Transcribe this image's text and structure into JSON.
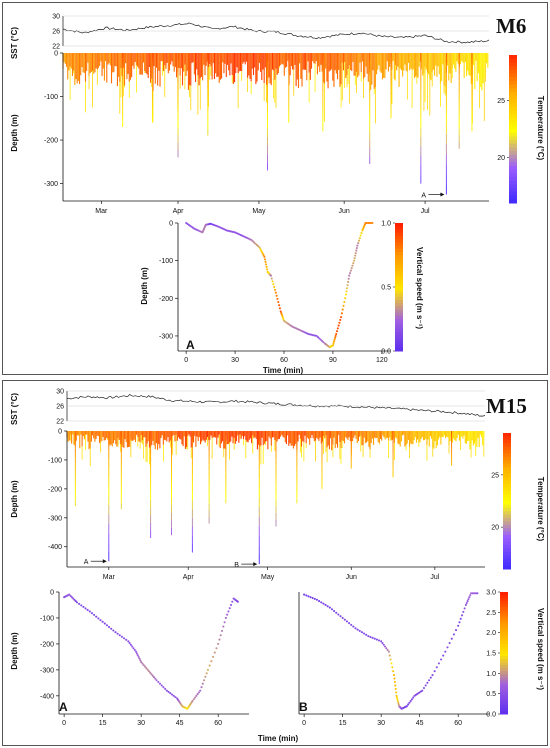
{
  "colors": {
    "temperature_scale": [
      "#3a28ff",
      "#9b5dff",
      "#ffff00",
      "#ffb000",
      "#ff2a00"
    ],
    "speed_scale": [
      "#5a2cf0",
      "#a060e0",
      "#ffe600",
      "#ff9a00",
      "#ff2000"
    ],
    "sst_line": "#222222",
    "axis": "#111111"
  },
  "chart_data": [
    {
      "id": "m6",
      "label": "M6",
      "type": "line",
      "sst": {
        "ylabel": "SST (°C)",
        "ylim": [
          22,
          30
        ],
        "ytick_labels": [
          "30",
          "26",
          "22"
        ],
        "ytick_values": [
          30,
          26,
          22
        ],
        "x": [
          0,
          0.05,
          0.1,
          0.15,
          0.2,
          0.25,
          0.3,
          0.35,
          0.4,
          0.45,
          0.5,
          0.55,
          0.6,
          0.65,
          0.7,
          0.75,
          0.8,
          0.85,
          0.9,
          0.95,
          1.0
        ],
        "values": [
          26.5,
          25.5,
          26.8,
          26.2,
          27.0,
          27.5,
          28.0,
          26.5,
          27.2,
          26.0,
          25.8,
          24.8,
          24.2,
          25.0,
          25.5,
          24.5,
          24.2,
          24.8,
          23.2,
          23.0,
          23.4
        ]
      },
      "dive": {
        "ylabel": "Depth (m)",
        "ylim": [
          0,
          340
        ],
        "ytick_labels": [
          "0",
          "-100",
          "-200",
          "-300"
        ],
        "ytick_values": [
          0,
          100,
          200,
          300
        ],
        "xtick_labels": [
          "Mar",
          "Apr",
          "May",
          "Jun",
          "Jul"
        ],
        "xtick_positions": [
          0.09,
          0.27,
          0.46,
          0.66,
          0.85
        ],
        "colorbar_label": "Temperature (°C)",
        "colorbar_ticks": [
          "25",
          "20"
        ],
        "colorbar_tick_values": [
          25,
          20
        ],
        "colorbar_range": [
          16,
          29
        ],
        "deep_dives": [
          {
            "x": 0.14,
            "depth": 170
          },
          {
            "x": 0.21,
            "depth": 160
          },
          {
            "x": 0.27,
            "depth": 240
          },
          {
            "x": 0.34,
            "depth": 190
          },
          {
            "x": 0.48,
            "depth": 270
          },
          {
            "x": 0.53,
            "depth": 160
          },
          {
            "x": 0.61,
            "depth": 180
          },
          {
            "x": 0.72,
            "depth": 255
          },
          {
            "x": 0.77,
            "depth": 150
          },
          {
            "x": 0.84,
            "depth": 300
          },
          {
            "x": 0.9,
            "depth": 325
          },
          {
            "x": 0.93,
            "depth": 220
          },
          {
            "x": 0.96,
            "depth": 180
          }
        ],
        "annotation": {
          "text": "A",
          "x": 0.9,
          "depth": 325
        }
      },
      "inset": {
        "letter": "A",
        "xlabel": "Time (min)",
        "ylabel": "Depth (m)",
        "xlim": [
          -5,
          125
        ],
        "xtick_labels": [
          "0",
          "30",
          "60",
          "90",
          "120"
        ],
        "xtick_values": [
          0,
          30,
          60,
          90,
          120
        ],
        "ylim": [
          0,
          340
        ],
        "ytick_labels": [
          "0",
          "-100",
          "-200",
          "-300"
        ],
        "ytick_values": [
          0,
          100,
          200,
          300
        ],
        "colorbar_label": "Vertical speed (m s⁻¹)",
        "colorbar_ticks": [
          "1.0",
          "0.5",
          "0.0"
        ],
        "colorbar_tick_values": [
          1.0,
          0.5,
          0.0
        ],
        "colorbar_range": [
          0,
          1.0
        ],
        "x": [
          0,
          5,
          10,
          12,
          15,
          20,
          25,
          30,
          35,
          40,
          45,
          48,
          50,
          52,
          55,
          58,
          60,
          65,
          70,
          75,
          80,
          85,
          88,
          90,
          92,
          95,
          98,
          100,
          103,
          105,
          108,
          110,
          115
        ],
        "values": [
          0,
          15,
          25,
          5,
          2,
          10,
          20,
          25,
          35,
          45,
          65,
          90,
          130,
          140,
          185,
          235,
          260,
          275,
          285,
          295,
          300,
          320,
          330,
          325,
          295,
          250,
          190,
          140,
          100,
          60,
          20,
          0,
          0
        ],
        "speed": [
          0.2,
          0.2,
          0.3,
          0.3,
          0.1,
          0.2,
          0.2,
          0.2,
          0.2,
          0.3,
          0.4,
          0.8,
          0.6,
          0.3,
          0.8,
          0.9,
          0.4,
          0.3,
          0.3,
          0.2,
          0.2,
          0.3,
          0.4,
          0.6,
          0.9,
          0.9,
          0.5,
          0.3,
          0.4,
          0.3,
          0.6,
          0.8,
          0.8
        ]
      }
    },
    {
      "id": "m15",
      "label": "M15",
      "type": "line",
      "sst": {
        "ylabel": "SST (°C)",
        "ylim": [
          22,
          30
        ],
        "ytick_labels": [
          "30",
          "26",
          "22"
        ],
        "ytick_values": [
          30,
          26,
          22
        ],
        "x": [
          0,
          0.05,
          0.1,
          0.15,
          0.2,
          0.25,
          0.3,
          0.35,
          0.4,
          0.45,
          0.5,
          0.55,
          0.6,
          0.65,
          0.7,
          0.75,
          0.8,
          0.85,
          0.9,
          0.95,
          1.0
        ],
        "values": [
          28.0,
          28.5,
          28.2,
          28.8,
          28.5,
          27.5,
          27.2,
          27.0,
          27.3,
          27.0,
          26.6,
          26.3,
          26.0,
          26.0,
          25.8,
          25.5,
          25.2,
          24.8,
          24.5,
          24.0,
          23.3
        ]
      },
      "dive": {
        "ylabel": "Depth (m)",
        "ylim": [
          0,
          470
        ],
        "ytick_labels": [
          "0",
          "-100",
          "-200",
          "-300",
          "-400"
        ],
        "ytick_values": [
          0,
          100,
          200,
          300,
          400
        ],
        "xtick_labels": [
          "Mar",
          "Apr",
          "May",
          "Jun",
          "Jul"
        ],
        "xtick_positions": [
          0.1,
          0.29,
          0.48,
          0.68,
          0.88
        ],
        "colorbar_label": "Temperature (°C)",
        "colorbar_ticks": [
          "25",
          "20"
        ],
        "colorbar_tick_values": [
          25,
          20
        ],
        "colorbar_range": [
          16,
          29
        ],
        "deep_dives": [
          {
            "x": 0.02,
            "depth": 260
          },
          {
            "x": 0.1,
            "depth": 450
          },
          {
            "x": 0.13,
            "depth": 270
          },
          {
            "x": 0.2,
            "depth": 370
          },
          {
            "x": 0.25,
            "depth": 360
          },
          {
            "x": 0.3,
            "depth": 420
          },
          {
            "x": 0.34,
            "depth": 320
          },
          {
            "x": 0.38,
            "depth": 250
          },
          {
            "x": 0.46,
            "depth": 460
          },
          {
            "x": 0.5,
            "depth": 330
          },
          {
            "x": 0.55,
            "depth": 250
          },
          {
            "x": 0.61,
            "depth": 200
          },
          {
            "x": 0.68,
            "depth": 130
          },
          {
            "x": 0.78,
            "depth": 160
          },
          {
            "x": 0.92,
            "depth": 120
          }
        ],
        "annotations": [
          {
            "text": "A",
            "x": 0.1,
            "depth": 450
          },
          {
            "text": "B",
            "x": 0.46,
            "depth": 460
          }
        ]
      },
      "insets": [
        {
          "letter": "A",
          "ylabel": "Depth (m)",
          "xlim": [
            -2,
            72
          ],
          "xtick_labels": [
            "0",
            "15",
            "30",
            "45",
            "60"
          ],
          "xtick_values": [
            0,
            15,
            30,
            45,
            60
          ],
          "ylim": [
            0,
            470
          ],
          "ytick_labels": [
            "0",
            "-100",
            "-200",
            "-300",
            "-400"
          ],
          "ytick_values": [
            0,
            100,
            200,
            300,
            400
          ],
          "x": [
            0,
            2,
            5,
            10,
            15,
            20,
            25,
            28,
            30,
            33,
            36,
            40,
            44,
            46,
            48,
            50,
            53,
            56,
            60,
            63,
            66,
            68
          ],
          "values": [
            20,
            10,
            40,
            75,
            115,
            155,
            190,
            230,
            270,
            305,
            340,
            380,
            410,
            440,
            450,
            420,
            380,
            300,
            200,
            100,
            25,
            40
          ],
          "speed": [
            0.5,
            0.7,
            0.4,
            0.4,
            0.4,
            0.4,
            0.5,
            0.7,
            0.9,
            1.0,
            0.8,
            0.5,
            0.6,
            1.2,
            1.5,
            1.0,
            0.8,
            1.2,
            1.0,
            0.8,
            0.6,
            0.4
          ]
        },
        {
          "letter": "B",
          "xlim": [
            -2,
            72
          ],
          "xtick_labels": [
            "0",
            "15",
            "30",
            "45",
            "60"
          ],
          "xtick_values": [
            0,
            15,
            30,
            45,
            60
          ],
          "ylim": [
            0,
            470
          ],
          "x": [
            0,
            5,
            10,
            15,
            20,
            25,
            30,
            33,
            35,
            36,
            37,
            38,
            40,
            43,
            46,
            50,
            55,
            60,
            63,
            65,
            68
          ],
          "values": [
            10,
            30,
            60,
            100,
            140,
            170,
            190,
            230,
            320,
            400,
            440,
            450,
            440,
            400,
            380,
            320,
            230,
            130,
            50,
            5,
            5
          ],
          "speed": [
            0.3,
            0.3,
            0.3,
            0.4,
            0.4,
            0.4,
            0.5,
            1.0,
            2.0,
            1.8,
            1.0,
            0.5,
            0.3,
            0.5,
            0.5,
            0.5,
            0.5,
            0.4,
            0.6,
            0.8,
            0.6
          ]
        }
      ],
      "shared_xlabel": "Time (min)",
      "speed_colorbar": {
        "label": "Vertical speed (m s⁻¹)",
        "ticks": [
          "3.0",
          "2.5",
          "2.0",
          "1.5",
          "1.0",
          "0.5",
          "0.0"
        ],
        "tick_values": [
          3.0,
          2.5,
          2.0,
          1.5,
          1.0,
          0.5,
          0.0
        ],
        "range": [
          0,
          3.0
        ]
      }
    }
  ]
}
